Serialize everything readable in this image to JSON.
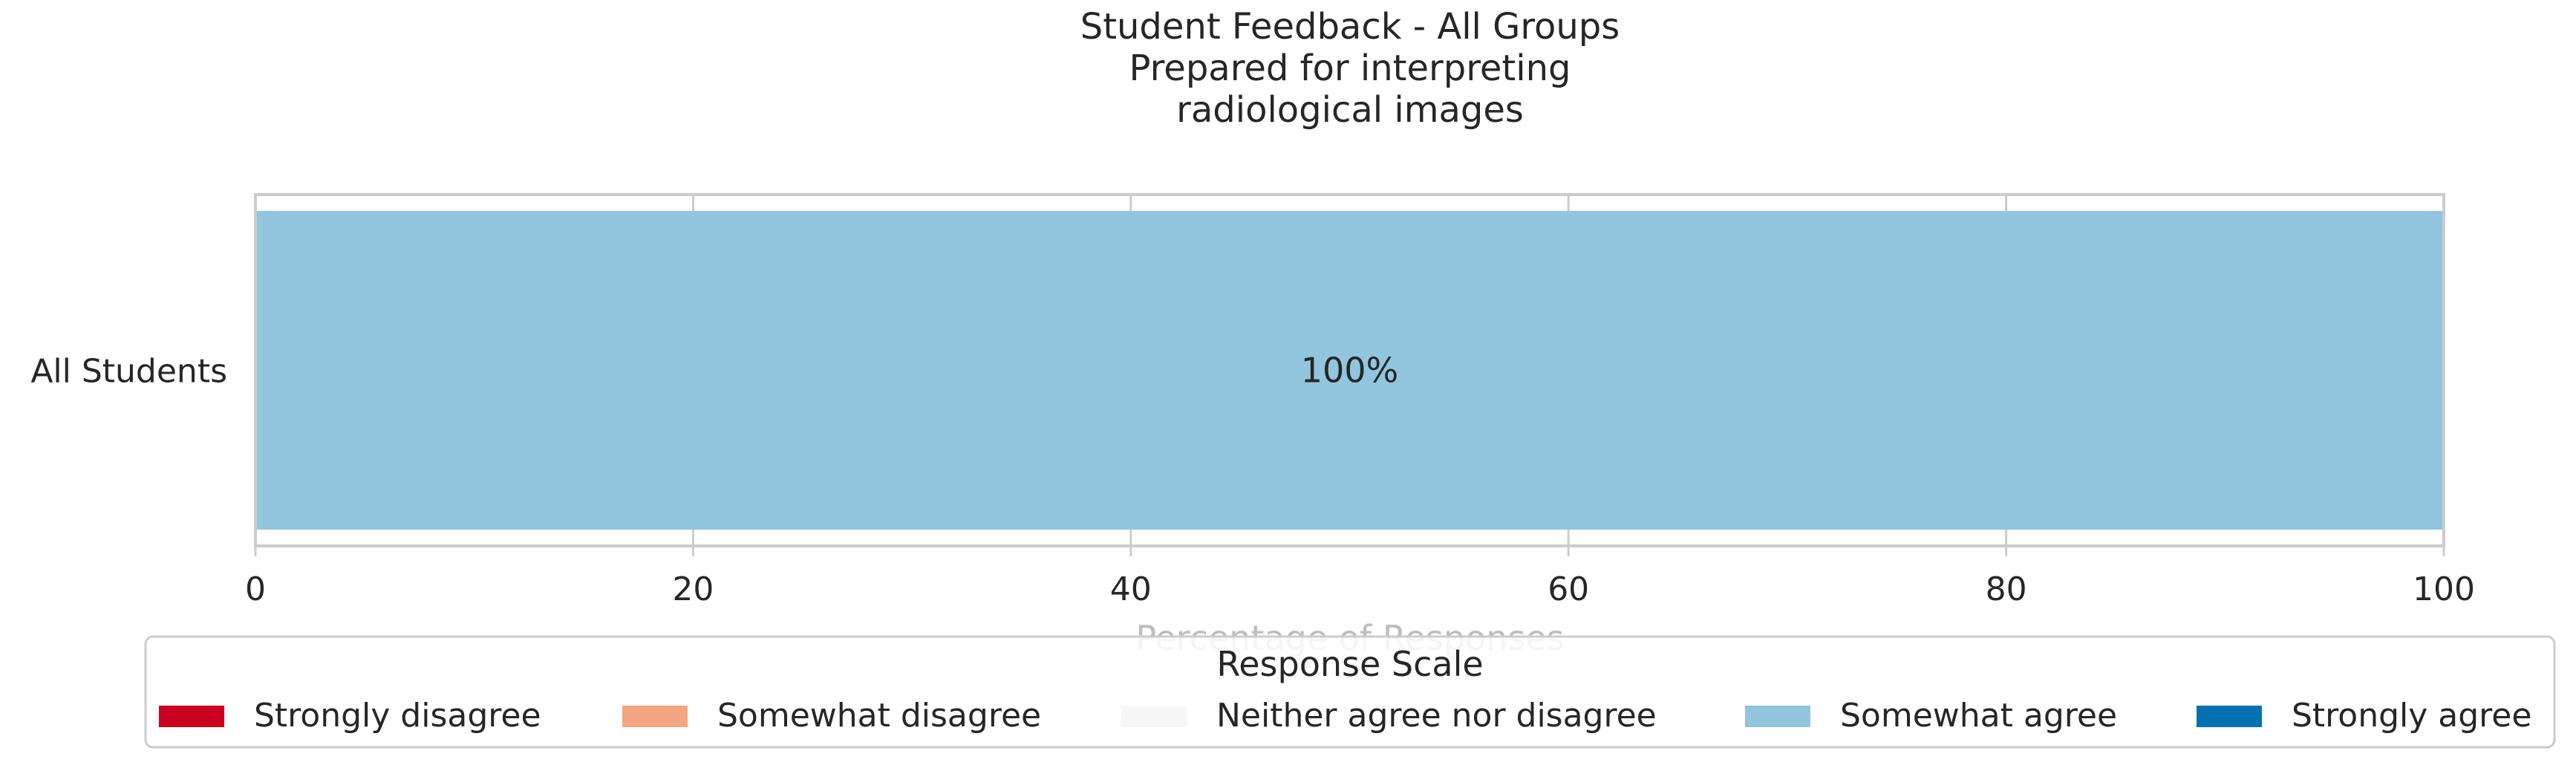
{
  "chart_data": {
    "type": "bar",
    "orientation": "horizontal",
    "stacked": true,
    "title": [
      "Student Feedback - All Groups",
      "Prepared for interpreting",
      "radiological images"
    ],
    "xlabel": "Percentage of Responses",
    "ylabel": "",
    "xlim": [
      0,
      100
    ],
    "xticks": [
      0,
      20,
      40,
      60,
      80,
      100
    ],
    "categories": [
      "All Students"
    ],
    "series": [
      {
        "name": "Strongly disagree",
        "color": "#ca0020",
        "values": [
          0
        ]
      },
      {
        "name": "Somewhat disagree",
        "color": "#f4a582",
        "values": [
          0
        ]
      },
      {
        "name": "Neither agree nor disagree",
        "color": "#f7f7f7",
        "values": [
          0
        ]
      },
      {
        "name": "Somewhat agree",
        "color": "#92c5de",
        "values": [
          100
        ]
      },
      {
        "name": "Strongly agree",
        "color": "#0571b0",
        "values": [
          0
        ]
      }
    ],
    "data_labels": [
      {
        "series": "Somewhat agree",
        "category": "All Students",
        "text": "100%"
      }
    ],
    "grid": true,
    "legend": {
      "title": "Response Scale",
      "placement": "bottom"
    }
  }
}
